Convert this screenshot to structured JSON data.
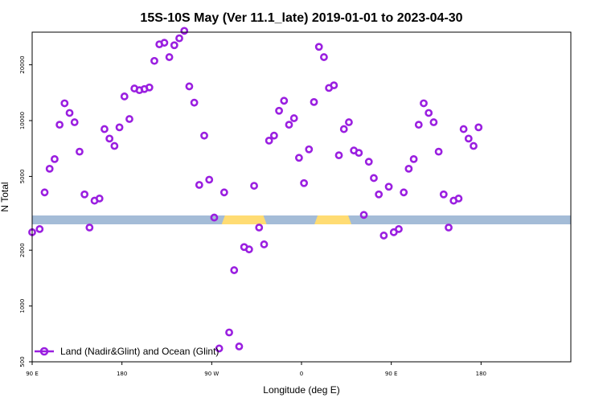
{
  "chart_data": {
    "type": "scatter",
    "title": "15S-10S May (Ver 11.1_late)   2019-01-01 to 2023-04-30",
    "xlabel": "Longitude (deg E)",
    "ylabel": "N Total",
    "xlim": [
      90,
      630
    ],
    "ylim_log": [
      500,
      30000
    ],
    "x_ticks": [
      {
        "value": 90,
        "label": "90 E"
      },
      {
        "value": 180,
        "label": "180"
      },
      {
        "value": 270,
        "label": "90 W"
      },
      {
        "value": 360,
        "label": "0"
      },
      {
        "value": 450,
        "label": "90 E"
      },
      {
        "value": 540,
        "label": "180"
      }
    ],
    "y_ticks": [
      {
        "value": 500,
        "label": "500"
      },
      {
        "value": 1000,
        "label": "1000"
      },
      {
        "value": 2000,
        "label": "2000"
      },
      {
        "value": 5000,
        "label": "5000"
      },
      {
        "value": 10000,
        "label": "10000"
      },
      {
        "value": 20000,
        "label": "20000"
      }
    ],
    "series": [
      {
        "name": "Land (Nadir&Glint) and Ocean (Glint)",
        "color": "#9a1fe0",
        "points": [
          [
            90,
            2500
          ],
          [
            97.5,
            2600
          ],
          [
            102.5,
            4100
          ],
          [
            107.5,
            5500
          ],
          [
            112.5,
            6200
          ],
          [
            117.5,
            9500
          ],
          [
            122.5,
            12400
          ],
          [
            127.5,
            11000
          ],
          [
            132.5,
            9800
          ],
          [
            137.5,
            6800
          ],
          [
            142.5,
            4000
          ],
          [
            147.5,
            2650
          ],
          [
            152.5,
            3700
          ],
          [
            157.5,
            3800
          ],
          [
            162.5,
            9000
          ],
          [
            167.5,
            8000
          ],
          [
            172.5,
            7300
          ],
          [
            177.5,
            9200
          ],
          [
            182.5,
            13500
          ],
          [
            187.5,
            10200
          ],
          [
            192.5,
            14900
          ],
          [
            197.5,
            14600
          ],
          [
            202.5,
            14800
          ],
          [
            207.5,
            15100
          ],
          [
            212.5,
            21000
          ],
          [
            217.5,
            25800
          ],
          [
            222.5,
            26300
          ],
          [
            227.5,
            22000
          ],
          [
            232.5,
            25500
          ],
          [
            237.5,
            27800
          ],
          [
            242.5,
            30500
          ],
          [
            247.5,
            15300
          ],
          [
            252.5,
            12500
          ],
          [
            257.5,
            4500
          ],
          [
            262.5,
            8300
          ],
          [
            267.5,
            4800
          ],
          [
            272.5,
            3000
          ],
          [
            277.5,
            590
          ],
          [
            282.5,
            4100
          ],
          [
            287.5,
            720
          ],
          [
            292.5,
            1560
          ],
          [
            297.5,
            605
          ],
          [
            302.5,
            2080
          ],
          [
            307.5,
            2020
          ],
          [
            312.5,
            4450
          ],
          [
            317.5,
            2650
          ],
          [
            322.5,
            2150
          ],
          [
            327.5,
            7800
          ],
          [
            332.5,
            8300
          ],
          [
            337.5,
            11300
          ],
          [
            342.5,
            12800
          ],
          [
            347.5,
            9500
          ],
          [
            352.5,
            10300
          ],
          [
            357.5,
            6300
          ],
          [
            362.5,
            4600
          ],
          [
            367.5,
            7000
          ],
          [
            372.5,
            12600
          ],
          [
            377.5,
            25000
          ],
          [
            382.5,
            22000
          ],
          [
            387.5,
            15000
          ],
          [
            392.5,
            15500
          ],
          [
            397.5,
            6500
          ],
          [
            402.5,
            9000
          ],
          [
            407.5,
            9800
          ],
          [
            412.5,
            6900
          ],
          [
            417.5,
            6700
          ],
          [
            422.5,
            3100
          ],
          [
            427.5,
            6000
          ],
          [
            432.5,
            4900
          ],
          [
            437.5,
            4000
          ],
          [
            442.5,
            2400
          ],
          [
            447.5,
            4400
          ],
          [
            452.5,
            2500
          ],
          [
            457.5,
            2600
          ],
          [
            462.5,
            4100
          ],
          [
            467.5,
            5500
          ],
          [
            472.5,
            6200
          ],
          [
            477.5,
            9500
          ],
          [
            482.5,
            12400
          ],
          [
            487.5,
            11000
          ],
          [
            492.5,
            9800
          ],
          [
            497.5,
            6800
          ],
          [
            502.5,
            4000
          ],
          [
            507.5,
            2650
          ],
          [
            512.5,
            3700
          ],
          [
            517.5,
            3800
          ],
          [
            522.5,
            9000
          ],
          [
            527.5,
            8000
          ],
          [
            532.5,
            7300
          ],
          [
            537.5,
            9200
          ]
        ]
      }
    ],
    "surface_strip": {
      "ocean_color": "#a4bcd7",
      "land_color": "#ffdc73",
      "land_ranges": [
        [
          280,
          325
        ],
        [
          373,
          410
        ]
      ]
    },
    "legend": {
      "position": "bottom-left",
      "label": "Land (Nadir&Glint) and Ocean (Glint)"
    }
  }
}
